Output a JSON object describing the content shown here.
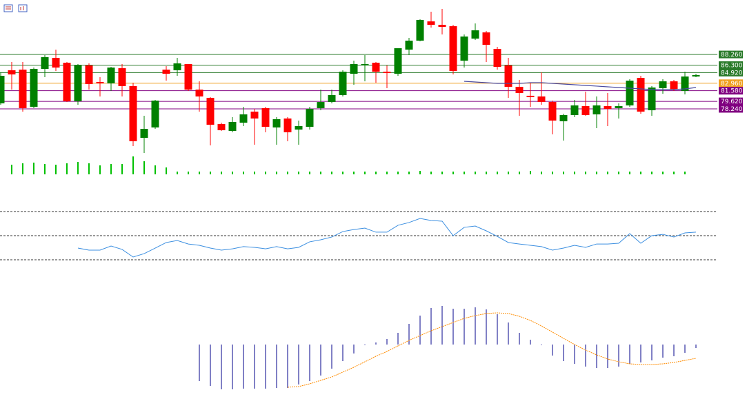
{
  "chart_data": {
    "type": "candlestick",
    "up_color": "#008000",
    "down_color": "#ff0000",
    "ylim": [
      69.09,
      98.3
    ],
    "open": [
      79.25,
      85.35,
      85.47,
      78.62,
      85.6,
      87.63,
      86.74,
      79.63,
      86.24,
      83.19,
      82.93,
      85.73,
      82.43,
      72.9,
      74.81,
      85.47,
      85.35,
      86.49,
      81.79,
      80.27,
      75.44,
      74.17,
      75.69,
      77.73,
      78.36,
      74.81,
      76.46,
      74.42,
      74.93,
      78.36,
      79.5,
      80.77,
      84.71,
      86.24,
      86.74,
      85.09,
      84.71,
      89.16,
      90.81,
      94.36,
      93.73,
      93.47,
      87.12,
      91.19,
      92.33,
      89.28,
      86.24,
      82.3,
      80.65,
      80.52,
      79.5,
      75.95,
      77.09,
      78.74,
      77.22,
      78.74,
      78.36,
      78.87,
      83.95,
      77.98,
      82.04,
      83.31,
      81.54,
      84.2
    ],
    "high": [
      84.97,
      86.87,
      86.87,
      85.85,
      88.14,
      89.16,
      86.87,
      86.49,
      86.62,
      84.08,
      85.98,
      86.49,
      83.06,
      76.96,
      79.89,
      86.11,
      87.63,
      86.49,
      83.31,
      80.39,
      75.69,
      76.71,
      78.62,
      78.23,
      78.62,
      76.71,
      76.71,
      76.08,
      78.62,
      81.79,
      81.79,
      85.35,
      87.12,
      88.14,
      86.87,
      86.24,
      89.41,
      91.32,
      94.75,
      96.14,
      96.65,
      93.73,
      91.95,
      93.98,
      92.59,
      89.66,
      87.63,
      83.57,
      83.06,
      84.97,
      79.76,
      77.35,
      79.89,
      81.41,
      80.52,
      81.16,
      79.25,
      83.7,
      84.33,
      82.43,
      83.7,
      83.57,
      85.09,
      84.71
    ],
    "low": [
      79.0,
      81.79,
      77.73,
      78.36,
      84.08,
      85.22,
      79.5,
      79.0,
      81.79,
      80.52,
      81.54,
      80.52,
      71.38,
      70.11,
      74.55,
      83.44,
      84.33,
      81.54,
      77.73,
      71.5,
      74.17,
      73.92,
      75.06,
      71.63,
      73.92,
      71.63,
      72.27,
      71.63,
      74.42,
      77.98,
      79.25,
      80.52,
      82.68,
      83.31,
      83.06,
      82.04,
      84.33,
      88.14,
      90.68,
      93.22,
      91.95,
      84.58,
      85.85,
      90.93,
      86.87,
      85.47,
      80.27,
      76.96,
      78.62,
      79.0,
      73.54,
      72.39,
      76.71,
      76.96,
      74.68,
      75.06,
      76.46,
      78.62,
      77.35,
      76.96,
      81.03,
      81.54,
      80.9,
      84.08
    ],
    "close": [
      84.33,
      84.58,
      78.36,
      85.6,
      87.76,
      85.85,
      79.63,
      86.24,
      82.81,
      82.93,
      85.85,
      82.43,
      72.27,
      74.55,
      79.76,
      84.71,
      86.62,
      81.79,
      80.52,
      75.31,
      74.3,
      75.82,
      77.22,
      76.46,
      74.93,
      76.33,
      73.92,
      75.06,
      78.23,
      79.5,
      80.77,
      85.09,
      86.49,
      86.49,
      85.09,
      84.84,
      89.41,
      90.81,
      94.62,
      93.73,
      93.35,
      85.22,
      91.57,
      92.71,
      90.04,
      85.98,
      82.3,
      81.16,
      80.39,
      79.5,
      76.08,
      77.09,
      78.87,
      77.09,
      78.87,
      78.23,
      78.74,
      83.44,
      77.73,
      82.17,
      83.31,
      81.79,
      84.2,
      84.46
    ],
    "ma": {
      "color": "#4a4aa0",
      "values": [
        null,
        null,
        null,
        null,
        null,
        null,
        null,
        null,
        null,
        null,
        null,
        null,
        null,
        null,
        null,
        null,
        null,
        null,
        null,
        null,
        null,
        null,
        null,
        null,
        null,
        null,
        null,
        null,
        null,
        null,
        null,
        null,
        null,
        null,
        null,
        null,
        null,
        null,
        null,
        null,
        null,
        null,
        83.31,
        83.19,
        83.06,
        82.93,
        82.93,
        82.93,
        83.06,
        83.06,
        82.93,
        82.81,
        82.68,
        82.55,
        82.43,
        82.3,
        82.17,
        82.04,
        81.92,
        81.79,
        81.79,
        81.79,
        81.92,
        82.17
      ]
    },
    "levels": [
      {
        "value": 88.26,
        "label": "88.260",
        "color": "#2a7a2a"
      },
      {
        "value": 86.3,
        "label": "86.300",
        "color": "#2a7a2a"
      },
      {
        "value": 84.92,
        "label": "84.920",
        "color": "#2a7a2a"
      },
      {
        "value": 82.96,
        "label": "82.960",
        "color": "#f0a020"
      },
      {
        "value": 81.58,
        "label": "81.580",
        "color": "#800080"
      },
      {
        "value": 79.62,
        "label": "79.620",
        "color": "#800080"
      },
      {
        "value": 78.24,
        "label": "78.240",
        "color": "#800080"
      }
    ],
    "volume": {
      "color": "#00c000",
      "ylim": [
        0,
        30
      ],
      "values": [
        null,
        14,
        16,
        17,
        15,
        14,
        16,
        18,
        16,
        13,
        15,
        15,
        26,
        19,
        13,
        10,
        4,
        4,
        4,
        4,
        4,
        4,
        4,
        4,
        4,
        4,
        4,
        4,
        4,
        4,
        4,
        4,
        4,
        4,
        4,
        4,
        4,
        4,
        5,
        4,
        4,
        4,
        4,
        4,
        4,
        4,
        4,
        4,
        5,
        4,
        4,
        4,
        4,
        4,
        4,
        4,
        4,
        4,
        4,
        4,
        4,
        4,
        4,
        null
      ]
    },
    "rsi": {
      "color": "#3a8ee0",
      "ylim": [
        20,
        80
      ],
      "levels": [
        30,
        50,
        70
      ],
      "values": [
        null,
        null,
        null,
        null,
        null,
        null,
        null,
        39.7,
        38.0,
        38.0,
        41.4,
        38.6,
        32.3,
        35.1,
        39.7,
        44.3,
        46.0,
        43.1,
        42.0,
        39.7,
        38.0,
        39.1,
        40.9,
        40.3,
        39.1,
        40.9,
        39.1,
        40.3,
        44.9,
        46.6,
        48.9,
        53.4,
        55.1,
        56.3,
        52.9,
        52.9,
        58.6,
        60.9,
        64.3,
        62.6,
        62.0,
        50.0,
        56.9,
        58.0,
        54.0,
        49.4,
        44.3,
        43.1,
        42.0,
        40.9,
        38.0,
        39.7,
        42.0,
        40.3,
        43.1,
        43.1,
        43.7,
        51.7,
        43.7,
        50.0,
        51.1,
        48.9,
        52.3,
        52.9
      ]
    },
    "macd": {
      "hist_color": "#00008b",
      "signal_color": "#ff8c00",
      "ylim": [
        -2.25,
        2
      ],
      "histogram": [
        null,
        null,
        null,
        null,
        null,
        null,
        null,
        null,
        null,
        null,
        null,
        null,
        null,
        null,
        null,
        null,
        null,
        null,
        -1.325,
        -1.5,
        -1.625,
        -1.625,
        -1.6,
        -1.6,
        -1.6,
        -1.575,
        -1.575,
        -1.45,
        -1.325,
        -1.125,
        -0.875,
        -0.6,
        -0.325,
        -0.025,
        0.075,
        0.2,
        0.425,
        0.75,
        1.05,
        1.325,
        1.4,
        1.3,
        1.3,
        1.35,
        1.275,
        1.1,
        0.8,
        0.425,
        0.175,
        -0.025,
        -0.4,
        -0.6,
        -0.7,
        -0.8,
        -0.85,
        -0.85,
        -0.8,
        -0.7,
        -0.65,
        -0.575,
        -0.475,
        -0.425,
        -0.3,
        -0.125
      ],
      "signal": [
        null,
        null,
        null,
        null,
        null,
        null,
        null,
        null,
        null,
        null,
        null,
        null,
        null,
        null,
        null,
        null,
        null,
        null,
        null,
        null,
        null,
        null,
        null,
        null,
        null,
        null,
        -1.55,
        -1.525,
        -1.425,
        -1.3,
        -1.175,
        -1.0,
        -0.825,
        -0.625,
        -0.425,
        -0.25,
        -0.05,
        0.15,
        0.325,
        0.5,
        0.65,
        0.8,
        0.95,
        1.05,
        1.125,
        1.15,
        1.125,
        1.025,
        0.875,
        0.675,
        0.45,
        0.225,
        0,
        -0.2,
        -0.375,
        -0.525,
        -0.625,
        -0.7,
        -0.725,
        -0.725,
        -0.7,
        -0.65,
        -0.575,
        -0.5
      ]
    }
  }
}
